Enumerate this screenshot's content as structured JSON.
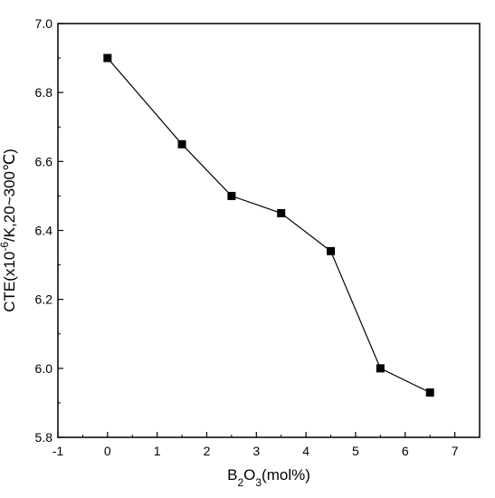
{
  "chart_data": {
    "type": "line",
    "xlabel_parts": [
      {
        "text": "B",
        "sub": false
      },
      {
        "text": "2",
        "sub": true
      },
      {
        "text": "O",
        "sub": false
      },
      {
        "text": "3",
        "sub": true
      },
      {
        "text": "(mol%)",
        "sub": false
      }
    ],
    "ylabel_parts": [
      {
        "text": "CTE(x10",
        "sup": false
      },
      {
        "text": "-6",
        "sup": true
      },
      {
        "text": "/K,20~300℃)",
        "sup": false
      }
    ],
    "xlim": [
      -1,
      7.5
    ],
    "ylim": [
      5.8,
      7.0
    ],
    "xticks": [
      -1,
      0,
      1,
      2,
      3,
      4,
      5,
      6,
      7
    ],
    "yticks": [
      5.8,
      6.0,
      6.2,
      6.4,
      6.6,
      6.8,
      7.0
    ],
    "xtick_labels": [
      "-1",
      "0",
      "1",
      "2",
      "3",
      "4",
      "5",
      "6",
      "7"
    ],
    "ytick_labels": [
      "5.8",
      "6.0",
      "6.2",
      "6.4",
      "6.6",
      "6.8",
      "7.0"
    ],
    "series": [
      {
        "x": [
          0,
          1.5,
          2.5,
          3.5,
          4.5,
          5.5,
          6.5
        ],
        "y": [
          6.9,
          6.65,
          6.5,
          6.45,
          6.34,
          6.0,
          5.93
        ],
        "marker": "square",
        "color": "#000000"
      }
    ],
    "grid": false
  }
}
